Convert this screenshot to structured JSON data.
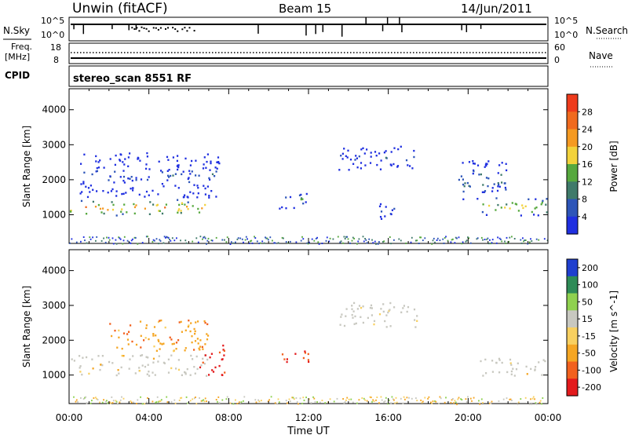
{
  "header": {
    "station": "Unwin (fitACF)",
    "beam": "Beam 15",
    "date": "14/Jun/2011"
  },
  "top_panels": {
    "nsky_label": "N.Sky",
    "nsky_ticks": [
      "10^5",
      "10^0"
    ],
    "nsearch_label": "N.Search",
    "nsearch_ticks": [
      "10^5",
      "10^0"
    ],
    "freq_label_1": "Freq.",
    "freq_label_2": "[MHz]",
    "freq_ticks": [
      "18",
      "8"
    ],
    "nave_label": "Nave",
    "nave_ticks": [
      "60",
      "0"
    ],
    "cpid_label": "CPID",
    "cpid_text": "stereo_scan 8551 RF"
  },
  "colors": {
    "power_scale": [
      "#1f2fe0",
      "#2d55b8",
      "#3f7a6a",
      "#56a83e",
      "#f2d23b",
      "#f59a22",
      "#f06a1e",
      "#ee3b1c"
    ],
    "velocity_scale": [
      "#e31a1c",
      "#f2611e",
      "#f5a623",
      "#f8d060",
      "#c8c8c0",
      "#8fd14f",
      "#2e8b57",
      "#1f3fcf"
    ]
  },
  "chart_data": [
    {
      "type": "heatmap",
      "title": "",
      "xlabel": "",
      "ylabel": "Slant Range [km]",
      "x_ticks": [
        "00:00",
        "04:00",
        "08:00",
        "12:00",
        "16:00",
        "20:00",
        "00:00"
      ],
      "y_ticks": [
        "1000",
        "2000",
        "3000",
        "4000"
      ],
      "ylim": [
        180,
        4600
      ],
      "colorbar_label": "Power [dB]",
      "colorbar_ticks": [
        "4",
        "8",
        "12",
        "16",
        "20",
        "24",
        "28"
      ],
      "regions": [
        {
          "name": "main band early",
          "x": [
            0,
            6.8
          ],
          "y": [
            1000,
            1450
          ],
          "value": 24
        },
        {
          "name": "scatter early",
          "x": [
            0.5,
            7.5
          ],
          "y": [
            1500,
            2800
          ],
          "value": 8
        },
        {
          "name": "evening cluster",
          "x": [
            10.5,
            12.0
          ],
          "y": [
            1200,
            1700
          ],
          "value": 10
        },
        {
          "name": "afternoon patch",
          "x": [
            13.5,
            17.5
          ],
          "y": [
            2300,
            3000
          ],
          "value": 8
        },
        {
          "name": "afternoon low",
          "x": [
            15.5,
            16.5
          ],
          "y": [
            800,
            1400
          ],
          "value": 8
        },
        {
          "name": "late band",
          "x": [
            20.5,
            24
          ],
          "y": [
            1000,
            1500
          ],
          "value": 20
        },
        {
          "name": "late scatter",
          "x": [
            19.5,
            22
          ],
          "y": [
            1400,
            2600
          ],
          "value": 10
        }
      ]
    },
    {
      "type": "heatmap",
      "title": "",
      "xlabel": "Time UT",
      "ylabel": "Slant Range [km]",
      "x_ticks": [
        "00:00",
        "04:00",
        "08:00",
        "12:00",
        "16:00",
        "20:00",
        "00:00"
      ],
      "y_ticks": [
        "1000",
        "2000",
        "3000",
        "4000"
      ],
      "ylim": [
        180,
        4600
      ],
      "colorbar_label": "Velocity [m s^-1]",
      "colorbar_ticks": [
        "200",
        "100",
        "50",
        "15",
        "-15",
        "-50",
        "-100",
        "-200"
      ],
      "regions": [
        {
          "name": "ground scatter early",
          "x": [
            0,
            7.0
          ],
          "y": [
            1000,
            1600
          ],
          "value": 0
        },
        {
          "name": "early high",
          "x": [
            2,
            7.0
          ],
          "y": [
            1700,
            2600
          ],
          "value": -40
        },
        {
          "name": "red blob",
          "x": [
            6.5,
            7.8
          ],
          "y": [
            1000,
            1900
          ],
          "value": -120
        },
        {
          "name": "evening red",
          "x": [
            10.5,
            12.0
          ],
          "y": [
            1400,
            1800
          ],
          "value": -110
        },
        {
          "name": "afternoon grey",
          "x": [
            13.5,
            17.5
          ],
          "y": [
            2400,
            3100
          ],
          "value": 0
        },
        {
          "name": "late ground scatter",
          "x": [
            20.5,
            24
          ],
          "y": [
            1000,
            1500
          ],
          "value": 0
        }
      ]
    }
  ]
}
